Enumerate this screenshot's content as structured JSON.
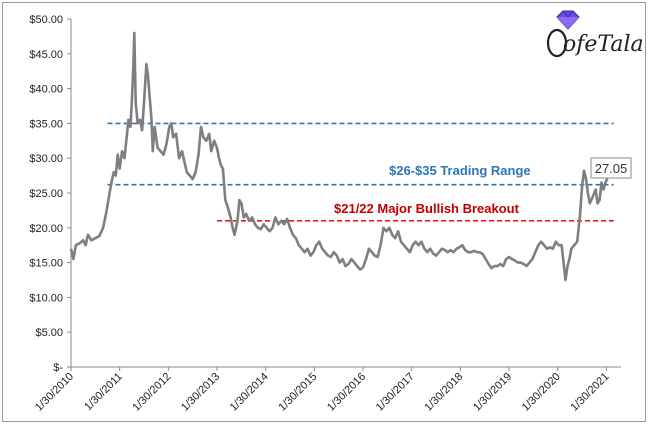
{
  "chart_data": {
    "type": "line",
    "title": "",
    "xlabel": "",
    "ylabel": "",
    "ylim": [
      0,
      50
    ],
    "grid": false,
    "x_tick_labels": [
      "1/30/2010",
      "1/30/2011",
      "1/30/2012",
      "1/30/2013",
      "1/30/2014",
      "1/30/2015",
      "1/30/2016",
      "1/30/2017",
      "1/30/2018",
      "1/30/2019",
      "1/30/2020",
      "1/30/2021"
    ],
    "y_tick_labels": [
      "$-",
      "$5.00",
      "$10.00",
      "$15.00",
      "$20.00",
      "$25.00",
      "$30.00",
      "$35.00",
      "$40.00",
      "$45.00",
      "$50.00"
    ],
    "series": [
      {
        "color": "#7f7f7f",
        "points": [
          [
            2010.0,
            17.0
          ],
          [
            2010.05,
            15.5
          ],
          [
            2010.1,
            17.5
          ],
          [
            2010.18,
            17.8
          ],
          [
            2010.25,
            18.2
          ],
          [
            2010.3,
            17.5
          ],
          [
            2010.35,
            19.0
          ],
          [
            2010.42,
            18.2
          ],
          [
            2010.5,
            18.5
          ],
          [
            2010.58,
            18.8
          ],
          [
            2010.66,
            20.0
          ],
          [
            2010.72,
            22.0
          ],
          [
            2010.78,
            24.5
          ],
          [
            2010.83,
            26.5
          ],
          [
            2010.88,
            28.0
          ],
          [
            2010.92,
            27.5
          ],
          [
            2010.96,
            30.5
          ],
          [
            2011.0,
            28.5
          ],
          [
            2011.05,
            31.0
          ],
          [
            2011.1,
            30.0
          ],
          [
            2011.15,
            33.5
          ],
          [
            2011.18,
            35.5
          ],
          [
            2011.22,
            34.5
          ],
          [
            2011.25,
            38.0
          ],
          [
            2011.28,
            43.0
          ],
          [
            2011.3,
            48.0
          ],
          [
            2011.33,
            38.0
          ],
          [
            2011.37,
            35.0
          ],
          [
            2011.42,
            35.5
          ],
          [
            2011.46,
            34.0
          ],
          [
            2011.5,
            38.0
          ],
          [
            2011.55,
            43.5
          ],
          [
            2011.58,
            42.0
          ],
          [
            2011.62,
            38.5
          ],
          [
            2011.65,
            36.0
          ],
          [
            2011.68,
            31.0
          ],
          [
            2011.72,
            34.5
          ],
          [
            2011.78,
            31.5
          ],
          [
            2011.84,
            31.0
          ],
          [
            2011.9,
            30.5
          ],
          [
            2011.96,
            32.0
          ],
          [
            2012.02,
            34.5
          ],
          [
            2012.06,
            35.0
          ],
          [
            2012.1,
            33.0
          ],
          [
            2012.16,
            33.5
          ],
          [
            2012.22,
            30.0
          ],
          [
            2012.28,
            31.0
          ],
          [
            2012.33,
            29.5
          ],
          [
            2012.38,
            28.0
          ],
          [
            2012.44,
            27.5
          ],
          [
            2012.5,
            27.0
          ],
          [
            2012.56,
            28.0
          ],
          [
            2012.62,
            30.5
          ],
          [
            2012.67,
            34.5
          ],
          [
            2012.72,
            33.0
          ],
          [
            2012.78,
            32.5
          ],
          [
            2012.84,
            33.5
          ],
          [
            2012.88,
            31.0
          ],
          [
            2012.94,
            32.5
          ],
          [
            2013.0,
            31.5
          ],
          [
            2013.04,
            30.0
          ],
          [
            2013.08,
            29.0
          ],
          [
            2013.12,
            28.5
          ],
          [
            2013.17,
            24.0
          ],
          [
            2013.22,
            23.0
          ],
          [
            2013.28,
            21.5
          ],
          [
            2013.32,
            20.0
          ],
          [
            2013.36,
            19.0
          ],
          [
            2013.42,
            21.0
          ],
          [
            2013.46,
            24.0
          ],
          [
            2013.5,
            23.5
          ],
          [
            2013.55,
            21.5
          ],
          [
            2013.6,
            22.0
          ],
          [
            2013.66,
            21.0
          ],
          [
            2013.72,
            21.5
          ],
          [
            2013.78,
            20.5
          ],
          [
            2013.84,
            20.0
          ],
          [
            2013.9,
            19.8
          ],
          [
            2013.96,
            20.5
          ],
          [
            2014.02,
            20.0
          ],
          [
            2014.08,
            19.5
          ],
          [
            2014.14,
            20.0
          ],
          [
            2014.2,
            21.5
          ],
          [
            2014.26,
            20.5
          ],
          [
            2014.32,
            21.0
          ],
          [
            2014.38,
            20.5
          ],
          [
            2014.44,
            21.3
          ],
          [
            2014.5,
            20.0
          ],
          [
            2014.56,
            19.0
          ],
          [
            2014.62,
            18.5
          ],
          [
            2014.68,
            17.5
          ],
          [
            2014.74,
            17.0
          ],
          [
            2014.8,
            16.5
          ],
          [
            2014.86,
            17.0
          ],
          [
            2014.92,
            16.0
          ],
          [
            2014.98,
            16.5
          ],
          [
            2015.04,
            17.5
          ],
          [
            2015.1,
            18.0
          ],
          [
            2015.16,
            17.0
          ],
          [
            2015.22,
            16.5
          ],
          [
            2015.28,
            16.0
          ],
          [
            2015.34,
            15.8
          ],
          [
            2015.4,
            16.5
          ],
          [
            2015.46,
            16.0
          ],
          [
            2015.52,
            15.0
          ],
          [
            2015.58,
            15.5
          ],
          [
            2015.64,
            14.5
          ],
          [
            2015.7,
            14.8
          ],
          [
            2015.76,
            15.5
          ],
          [
            2015.82,
            15.0
          ],
          [
            2015.88,
            14.5
          ],
          [
            2015.94,
            14.0
          ],
          [
            2016.0,
            14.3
          ],
          [
            2016.06,
            15.5
          ],
          [
            2016.12,
            17.0
          ],
          [
            2016.18,
            16.5
          ],
          [
            2016.24,
            16.0
          ],
          [
            2016.3,
            15.8
          ],
          [
            2016.36,
            17.5
          ],
          [
            2016.42,
            20.0
          ],
          [
            2016.48,
            19.5
          ],
          [
            2016.54,
            20.0
          ],
          [
            2016.6,
            19.0
          ],
          [
            2016.66,
            18.5
          ],
          [
            2016.72,
            19.5
          ],
          [
            2016.78,
            18.0
          ],
          [
            2016.84,
            17.5
          ],
          [
            2016.9,
            17.0
          ],
          [
            2016.96,
            16.5
          ],
          [
            2017.02,
            17.5
          ],
          [
            2017.08,
            18.0
          ],
          [
            2017.14,
            17.5
          ],
          [
            2017.2,
            18.0
          ],
          [
            2017.26,
            17.0
          ],
          [
            2017.32,
            16.5
          ],
          [
            2017.38,
            17.0
          ],
          [
            2017.44,
            16.3
          ],
          [
            2017.5,
            16.0
          ],
          [
            2017.56,
            16.5
          ],
          [
            2017.62,
            17.0
          ],
          [
            2017.68,
            16.8
          ],
          [
            2017.74,
            16.5
          ],
          [
            2017.8,
            16.8
          ],
          [
            2017.86,
            16.5
          ],
          [
            2017.92,
            17.0
          ],
          [
            2017.98,
            17.2
          ],
          [
            2018.04,
            17.5
          ],
          [
            2018.1,
            16.8
          ],
          [
            2018.16,
            16.5
          ],
          [
            2018.22,
            16.5
          ],
          [
            2018.28,
            16.7
          ],
          [
            2018.34,
            16.5
          ],
          [
            2018.4,
            16.5
          ],
          [
            2018.46,
            16.2
          ],
          [
            2018.52,
            15.5
          ],
          [
            2018.58,
            14.8
          ],
          [
            2018.64,
            14.2
          ],
          [
            2018.7,
            14.5
          ],
          [
            2018.76,
            14.5
          ],
          [
            2018.82,
            14.8
          ],
          [
            2018.88,
            14.5
          ],
          [
            2018.94,
            15.5
          ],
          [
            2019.0,
            15.8
          ],
          [
            2019.06,
            15.5
          ],
          [
            2019.12,
            15.3
          ],
          [
            2019.18,
            15.0
          ],
          [
            2019.24,
            15.0
          ],
          [
            2019.3,
            14.8
          ],
          [
            2019.36,
            14.5
          ],
          [
            2019.42,
            15.0
          ],
          [
            2019.48,
            15.5
          ],
          [
            2019.54,
            16.5
          ],
          [
            2019.6,
            17.5
          ],
          [
            2019.66,
            18.0
          ],
          [
            2019.72,
            17.5
          ],
          [
            2019.78,
            17.0
          ],
          [
            2019.84,
            17.2
          ],
          [
            2019.9,
            17.0
          ],
          [
            2019.96,
            18.0
          ],
          [
            2020.02,
            17.5
          ],
          [
            2020.08,
            17.5
          ],
          [
            2020.12,
            15.0
          ],
          [
            2020.16,
            12.5
          ],
          [
            2020.2,
            14.5
          ],
          [
            2020.24,
            15.5
          ],
          [
            2020.28,
            17.0
          ],
          [
            2020.34,
            17.5
          ],
          [
            2020.4,
            18.0
          ],
          [
            2020.46,
            22.0
          ],
          [
            2020.5,
            26.0
          ],
          [
            2020.54,
            28.2
          ],
          [
            2020.58,
            27.0
          ],
          [
            2020.62,
            25.0
          ],
          [
            2020.66,
            23.5
          ],
          [
            2020.72,
            24.5
          ],
          [
            2020.78,
            25.5
          ],
          [
            2020.82,
            23.5
          ],
          [
            2020.86,
            24.0
          ],
          [
            2020.9,
            26.5
          ],
          [
            2020.94,
            25.5
          ],
          [
            2020.98,
            26.5
          ],
          [
            2021.02,
            27.05
          ]
        ]
      }
    ],
    "reference_lines": [
      {
        "y": 35.0,
        "x_start": 2010.75,
        "x_end": 2021.15,
        "color": "#2e75b6",
        "style": "dashed"
      },
      {
        "y": 26.2,
        "x_start": 2010.75,
        "x_end": 2021.15,
        "color": "#2e75b6",
        "style": "dashed"
      },
      {
        "y": 21.0,
        "x_start": 2013.0,
        "x_end": 2021.15,
        "color": "#e3191c",
        "style": "dashed"
      }
    ],
    "annotations": [
      {
        "text": "$26-$35  Trading Range",
        "color": "#2e75b6"
      },
      {
        "text": "$21/22 Major Bullish Breakout",
        "color": "#c00000"
      },
      {
        "text": "27.05",
        "boxed": true
      }
    ]
  },
  "logo": {
    "text": "ofeTala",
    "gem_color": "#5b3fd6"
  }
}
